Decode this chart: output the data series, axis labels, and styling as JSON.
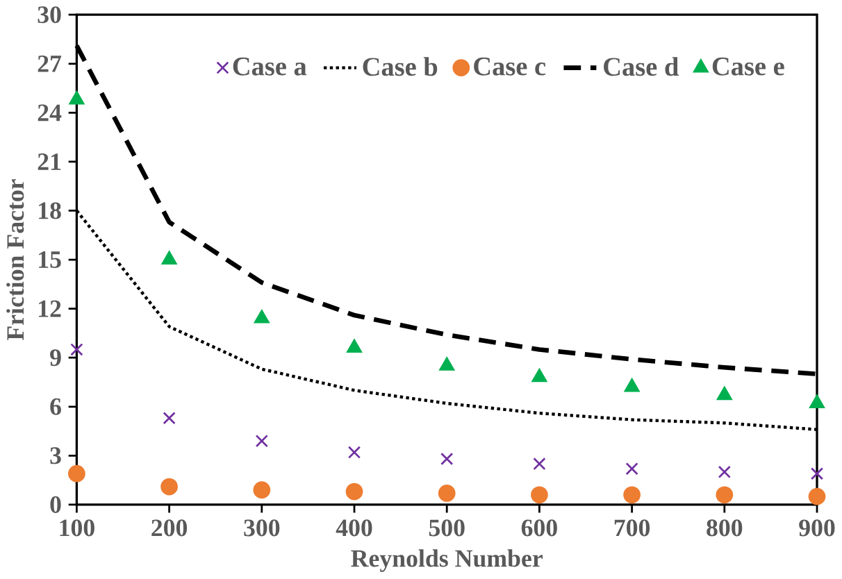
{
  "chart_data": {
    "type": "line",
    "xlabel": "Reynolds Number",
    "ylabel": "Friction Factor",
    "x": [
      100,
      200,
      300,
      400,
      500,
      600,
      700,
      800,
      900
    ],
    "xlim": [
      100,
      900
    ],
    "xticks": [
      100,
      200,
      300,
      400,
      500,
      600,
      700,
      800,
      900
    ],
    "ylim": [
      0,
      30
    ],
    "yticks": [
      0,
      3,
      6,
      9,
      12,
      15,
      18,
      21,
      24,
      27,
      30
    ],
    "grid": false,
    "legend": "top",
    "series": [
      {
        "name": "Case a",
        "type": "scatter",
        "marker": "cross",
        "color": "#7030a0",
        "values": [
          9.5,
          5.3,
          3.9,
          3.2,
          2.8,
          2.5,
          2.2,
          2.0,
          1.9
        ]
      },
      {
        "name": "Case b",
        "line_style": "dotted",
        "color": "#000000",
        "values": [
          18.0,
          10.9,
          8.3,
          7.0,
          6.2,
          5.6,
          5.2,
          5.0,
          4.6
        ]
      },
      {
        "name": "Case c",
        "type": "scatter",
        "marker": "circle",
        "color": "#ed7d31",
        "values": [
          1.9,
          1.1,
          0.9,
          0.8,
          0.7,
          0.6,
          0.6,
          0.6,
          0.5
        ]
      },
      {
        "name": "Case d",
        "line_style": "dashed",
        "color": "#000000",
        "values": [
          28.1,
          17.3,
          13.6,
          11.6,
          10.4,
          9.5,
          8.9,
          8.4,
          8.0
        ]
      },
      {
        "name": "Case e",
        "type": "scatter",
        "marker": "triangle",
        "color": "#00b050",
        "values": [
          24.8,
          15.0,
          11.4,
          9.6,
          8.5,
          7.8,
          7.2,
          6.7,
          6.2
        ]
      }
    ]
  }
}
